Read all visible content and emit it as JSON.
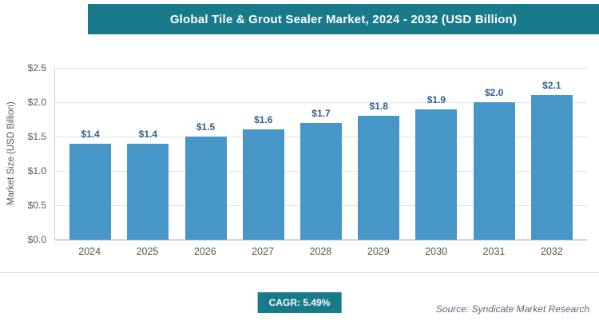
{
  "header": {
    "title": "Global Tile & Grout Sealer Market, 2024 - 2032 (USD Billion)"
  },
  "footer": {
    "cagr_label": "CAGR: 5.49%",
    "source": "Source: Syndicate Market Research"
  },
  "colors": {
    "header_bar": "#187a8b",
    "badge_bg": "#187a8b",
    "bar_fill": "#4697c8",
    "value_label": "#315f8c"
  },
  "chart_data": {
    "type": "bar",
    "title": "Global Tile & Grout Sealer Market, 2024 - 2032 (USD Billion)",
    "categories": [
      "2024",
      "2025",
      "2026",
      "2027",
      "2028",
      "2029",
      "2030",
      "2031",
      "2032"
    ],
    "values": [
      1.4,
      1.4,
      1.5,
      1.6,
      1.7,
      1.8,
      1.9,
      2.0,
      2.1
    ],
    "value_labels": [
      "$1.4",
      "$1.4",
      "$1.5",
      "$1.6",
      "$1.7",
      "$1.8",
      "$1.9",
      "$2.0",
      "$2.1"
    ],
    "xlabel": "",
    "ylabel": "Market Size (USD Billion)",
    "ylim": [
      0,
      2.5
    ],
    "yticks": [
      "$0.0",
      "$0.5",
      "$1.0",
      "$1.5",
      "$2.0",
      "$2.5"
    ],
    "grid": true,
    "legend": "none",
    "bar_color": "#4697c8",
    "label_color": "#315f8c"
  }
}
